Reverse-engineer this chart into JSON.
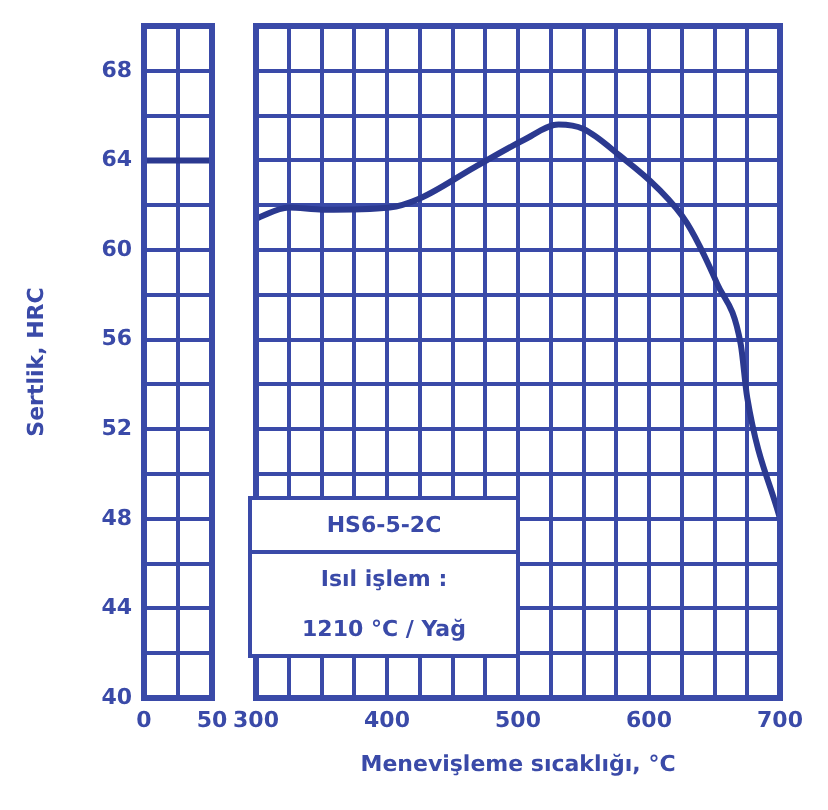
{
  "chart_data": [
    {
      "type": "line",
      "ylabel": "Sertlik, HRC",
      "x": [
        0,
        50
      ],
      "series": [
        {
          "color": "#2b3990",
          "values": [
            64,
            64
          ]
        }
      ],
      "xlim": [
        0,
        50
      ],
      "xticks": [
        0,
        {
          "value": 25,
          "label": null
        },
        50
      ],
      "ylim": [
        40,
        70
      ],
      "yticks": [
        40,
        {
          "value": 42,
          "label": null
        },
        44,
        {
          "value": 46,
          "label": null
        },
        48,
        {
          "value": 50,
          "label": null
        },
        52,
        {
          "value": 54,
          "label": null
        },
        56,
        {
          "value": 58,
          "label": null
        },
        60,
        {
          "value": 62,
          "label": null
        },
        64,
        {
          "value": 66,
          "label": null
        },
        68,
        {
          "value": 70,
          "label": null
        }
      ],
      "grid": true,
      "marker": "none"
    },
    {
      "type": "line",
      "xlabel": "Menevişleme sıcaklığı, °C",
      "x": [
        300,
        325,
        351,
        402,
        425,
        467,
        504,
        531,
        550,
        578,
        606,
        629,
        652,
        670,
        675,
        700
      ],
      "series": [
        {
          "color": "#2b3990",
          "values": [
            61.4,
            61.9,
            61.8,
            61.9,
            62.3,
            63.7,
            64.9,
            65.6,
            65.4,
            64.2,
            62.8,
            61.2,
            58.5,
            55.8,
            53.4,
            48.0
          ]
        }
      ],
      "xlim": [
        300,
        700
      ],
      "xticks": [
        300,
        {
          "value": 325,
          "label": null
        },
        {
          "value": 350,
          "label": null
        },
        {
          "value": 375,
          "label": null
        },
        400,
        {
          "value": 425,
          "label": null
        },
        {
          "value": 450,
          "label": null
        },
        {
          "value": 475,
          "label": null
        },
        500,
        {
          "value": 525,
          "label": null
        },
        {
          "value": 550,
          "label": null
        },
        {
          "value": 575,
          "label": null
        },
        600,
        {
          "value": 625,
          "label": null
        },
        {
          "value": 650,
          "label": null
        },
        {
          "value": 675,
          "label": null
        },
        700
      ],
      "ylim": [
        40,
        70
      ],
      "yticks": [
        40,
        {
          "value": 42,
          "label": null
        },
        44,
        {
          "value": 46,
          "label": null
        },
        48,
        {
          "value": 50,
          "label": null
        },
        52,
        {
          "value": 54,
          "label": null
        },
        56,
        {
          "value": 58,
          "label": null
        },
        60,
        {
          "value": 62,
          "label": null
        },
        64,
        {
          "value": 66,
          "label": null
        },
        68,
        {
          "value": 70,
          "label": null
        }
      ],
      "grid": true,
      "marker": "none",
      "tick_labels": "x",
      "annotations": [
        "HS6-5-2C",
        "Isıl işlem :",
        "1210 °C / Yağ"
      ]
    }
  ]
}
